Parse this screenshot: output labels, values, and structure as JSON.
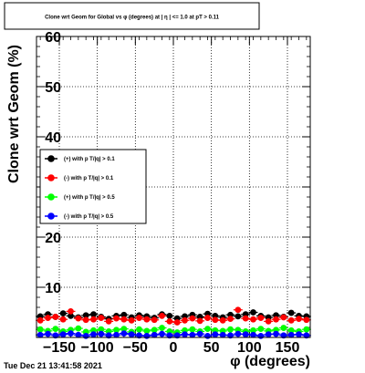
{
  "timestamp": "Tue Dec 21 13:41:58 2021",
  "chart_data": {
    "type": "scatter",
    "title": "Clone wrt Geom for Global vs φ (degrees) at | η | <= 1.0 at pT > 0.11",
    "xlabel": "φ (degrees)",
    "ylabel": "Clone wrt Geom (%)",
    "xlim": [
      -180,
      180
    ],
    "ylim": [
      0,
      60
    ],
    "xticks": [
      -150,
      -100,
      -50,
      0,
      50,
      100,
      150
    ],
    "xtick_labels": [
      "−150",
      "−100",
      "−50",
      "0",
      "50",
      "100",
      "150"
    ],
    "yticks": [
      10,
      20,
      30,
      40,
      50,
      60
    ],
    "ytick_labels": [
      "10",
      "20",
      "30",
      "40",
      "50",
      "60"
    ],
    "grid": true,
    "legend_position": "middle-left",
    "x": [
      -175,
      -165,
      -155,
      -145,
      -135,
      -125,
      -115,
      -105,
      -95,
      -85,
      -75,
      -65,
      -55,
      -45,
      -35,
      -25,
      -15,
      -5,
      5,
      15,
      25,
      35,
      45,
      55,
      65,
      75,
      85,
      95,
      105,
      115,
      125,
      135,
      145,
      155,
      165,
      175
    ],
    "series": [
      {
        "name": "(+) with pT/|q| > 0.1",
        "color": "#000000",
        "values": [
          4.2,
          4.6,
          4.1,
          4.8,
          4.3,
          4.0,
          4.4,
          4.6,
          4.1,
          3.7,
          4.3,
          4.5,
          4.0,
          4.4,
          4.2,
          3.9,
          4.6,
          4.3,
          3.8,
          4.2,
          4.5,
          4.1,
          4.7,
          4.3,
          4.0,
          4.5,
          4.2,
          4.6,
          5.0,
          4.3,
          4.0,
          4.4,
          4.1,
          4.9,
          4.3,
          4.2
        ]
      },
      {
        "name": "(-) with pT/|q| > 0.1",
        "color": "#ff0000",
        "values": [
          3.4,
          3.9,
          4.1,
          3.6,
          5.2,
          3.8,
          3.5,
          3.6,
          3.9,
          3.2,
          3.8,
          3.6,
          3.4,
          3.9,
          3.6,
          3.5,
          4.3,
          3.2,
          3.0,
          3.4,
          3.8,
          3.3,
          3.9,
          3.5,
          3.4,
          3.7,
          5.5,
          3.8,
          3.6,
          3.9,
          3.2,
          3.6,
          4.0,
          3.4,
          3.7,
          3.5
        ]
      },
      {
        "name": "(+) with pT/|q| > 0.5",
        "color": "#00ff00",
        "values": [
          1.6,
          1.3,
          1.7,
          1.2,
          1.5,
          1.8,
          1.1,
          1.4,
          1.6,
          1.2,
          1.5,
          1.7,
          1.1,
          1.6,
          1.3,
          1.5,
          1.9,
          1.2,
          1.0,
          1.4,
          1.6,
          1.2,
          1.7,
          1.4,
          1.3,
          1.6,
          1.5,
          1.2,
          1.4,
          1.7,
          1.3,
          1.5,
          1.9,
          1.4,
          1.2,
          1.6
        ]
      },
      {
        "name": "(-) with pT/|q| > 0.5",
        "color": "#0000ff",
        "values": [
          0.5,
          0.7,
          0.4,
          0.6,
          0.8,
          0.5,
          0.3,
          0.6,
          0.7,
          0.4,
          0.5,
          0.8,
          0.6,
          0.4,
          0.3,
          0.5,
          0.7,
          0.4,
          0.4,
          0.6,
          0.5,
          0.7,
          0.3,
          0.6,
          0.5,
          0.4,
          0.7,
          0.6,
          0.5,
          0.3,
          0.6,
          0.7,
          0.4,
          0.5,
          0.6,
          0.4
        ]
      }
    ],
    "legend": {
      "entries": [
        {
          "label": "(+) with p T/|q| > 0.1",
          "color": "#000000"
        },
        {
          "label": "(-) with p T/|q| > 0.1",
          "color": "#ff0000"
        },
        {
          "label": "(+) with p T/|q| > 0.5",
          "color": "#00ff00"
        },
        {
          "label": "(-) with p T/|q| > 0.5",
          "color": "#0000ff"
        }
      ]
    }
  }
}
